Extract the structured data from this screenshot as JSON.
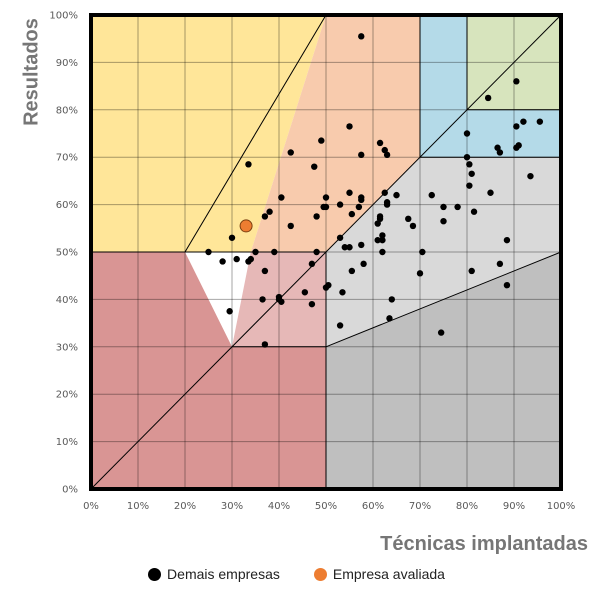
{
  "chart_data": {
    "type": "scatter",
    "title": "",
    "xlabel": "Técnicas implantadas",
    "ylabel": "Resultados",
    "xlim": [
      0,
      100
    ],
    "ylim": [
      0,
      100
    ],
    "x_ticks": [
      "0%",
      "10%",
      "20%",
      "30%",
      "40%",
      "50%",
      "60%",
      "70%",
      "80%",
      "90%",
      "100%"
    ],
    "y_ticks": [
      "0%",
      "10%",
      "20%",
      "30%",
      "40%",
      "50%",
      "60%",
      "70%",
      "80%",
      "90%",
      "100%"
    ],
    "grid": true,
    "legend_position": "bottom",
    "regions": [
      {
        "points": [
          [
            0,
            50
          ],
          [
            34,
            50
          ],
          [
            50,
            100
          ],
          [
            0,
            100
          ]
        ],
        "color": "#FFE699"
      },
      {
        "points": [
          [
            34,
            50
          ],
          [
            50,
            50
          ],
          [
            70,
            70
          ],
          [
            70,
            100
          ],
          [
            50,
            100
          ]
        ],
        "color": "#F8CBAD"
      },
      {
        "points": [
          [
            0,
            0
          ],
          [
            50,
            0
          ],
          [
            50,
            30
          ],
          [
            30,
            30
          ],
          [
            20,
            50
          ],
          [
            0,
            50
          ]
        ],
        "color": "#D99594"
      },
      {
        "points": [
          [
            30,
            30
          ],
          [
            50,
            30
          ],
          [
            50,
            50
          ],
          [
            34,
            50
          ]
        ],
        "color": "#E6B8B7"
      },
      {
        "points": [
          [
            50,
            0
          ],
          [
            100,
            0
          ],
          [
            100,
            50
          ],
          [
            50,
            30
          ]
        ],
        "color": "#BFBFBF"
      },
      {
        "points": [
          [
            50,
            30
          ],
          [
            100,
            50
          ],
          [
            100,
            70
          ],
          [
            70,
            70
          ],
          [
            50,
            50
          ]
        ],
        "color": "#D9D9D9"
      },
      {
        "points": [
          [
            70,
            70
          ],
          [
            100,
            70
          ],
          [
            100,
            80
          ],
          [
            80,
            80
          ],
          [
            80,
            100
          ],
          [
            70,
            100
          ]
        ],
        "color": "#B4DAE8"
      },
      {
        "points": [
          [
            80,
            80
          ],
          [
            100,
            80
          ],
          [
            100,
            100
          ],
          [
            80,
            100
          ]
        ],
        "color": "#D7E4BD"
      }
    ],
    "series": [
      {
        "name": "Demais empresas",
        "color": "#000000",
        "points": [
          [
            57.5,
            95.5
          ],
          [
            84.5,
            82.5
          ],
          [
            90.5,
            86
          ],
          [
            92,
            77.5
          ],
          [
            95.5,
            77.5
          ],
          [
            90.5,
            76.5
          ],
          [
            80,
            75
          ],
          [
            90.5,
            72
          ],
          [
            91,
            72.5
          ],
          [
            86.5,
            72
          ],
          [
            87,
            71
          ],
          [
            93.5,
            66
          ],
          [
            80,
            70
          ],
          [
            80.5,
            68.5
          ],
          [
            81,
            66.5
          ],
          [
            80.5,
            64
          ],
          [
            85,
            62.5
          ],
          [
            81.5,
            58.5
          ],
          [
            88.5,
            52.5
          ],
          [
            87,
            47.5
          ],
          [
            88.5,
            43
          ],
          [
            81,
            46
          ],
          [
            74.5,
            33
          ],
          [
            55,
            76.5
          ],
          [
            49,
            73.5
          ],
          [
            61.5,
            73
          ],
          [
            62.5,
            71.5
          ],
          [
            63,
            70.5
          ],
          [
            57.5,
            70.5
          ],
          [
            33.5,
            68.5
          ],
          [
            42.5,
            71
          ],
          [
            47.5,
            68
          ],
          [
            62.5,
            62.5
          ],
          [
            65,
            62
          ],
          [
            63,
            60.5
          ],
          [
            63,
            60
          ],
          [
            55,
            62.5
          ],
          [
            57.5,
            61.5
          ],
          [
            57.5,
            61
          ],
          [
            53,
            60
          ],
          [
            50,
            59.5
          ],
          [
            49.5,
            59.5
          ],
          [
            50,
            61.5
          ],
          [
            57,
            59.5
          ],
          [
            72.5,
            62
          ],
          [
            75,
            59.5
          ],
          [
            78,
            59.5
          ],
          [
            75,
            56.5
          ],
          [
            67.5,
            57
          ],
          [
            68.5,
            55.5
          ],
          [
            61.5,
            57.5
          ],
          [
            61.5,
            57
          ],
          [
            61,
            56
          ],
          [
            55.5,
            58
          ],
          [
            48,
            57.5
          ],
          [
            40.5,
            61.5
          ],
          [
            38,
            58.5
          ],
          [
            37,
            57.5
          ],
          [
            42.5,
            55.5
          ],
          [
            53,
            53
          ],
          [
            57.5,
            51.5
          ],
          [
            62,
            53.5
          ],
          [
            62,
            52.5
          ],
          [
            61,
            52.5
          ],
          [
            62,
            50
          ],
          [
            70.5,
            50
          ],
          [
            70,
            45.5
          ],
          [
            58,
            47.5
          ],
          [
            55.5,
            46
          ],
          [
            54,
            51
          ],
          [
            55,
            51
          ],
          [
            48,
            50
          ],
          [
            47,
            47.5
          ],
          [
            53.5,
            41.5
          ],
          [
            50.5,
            43
          ],
          [
            50,
            42.5
          ],
          [
            45.5,
            41.5
          ],
          [
            47,
            39
          ],
          [
            40,
            40.5
          ],
          [
            40,
            40
          ],
          [
            40.5,
            39.5
          ],
          [
            36.5,
            40
          ],
          [
            37,
            46
          ],
          [
            34,
            48.5
          ],
          [
            33.5,
            48
          ],
          [
            35,
            50
          ],
          [
            39,
            50
          ],
          [
            31,
            48.5
          ],
          [
            28,
            48
          ],
          [
            25,
            50
          ],
          [
            30,
            53
          ],
          [
            29.5,
            37.5
          ],
          [
            37,
            30.5
          ],
          [
            64,
            40
          ],
          [
            63.5,
            36
          ],
          [
            53,
            34.5
          ]
        ]
      },
      {
        "name": "Empresa avaliada",
        "color": "#ED7D31",
        "points": [
          [
            33,
            55.5
          ]
        ]
      }
    ]
  }
}
